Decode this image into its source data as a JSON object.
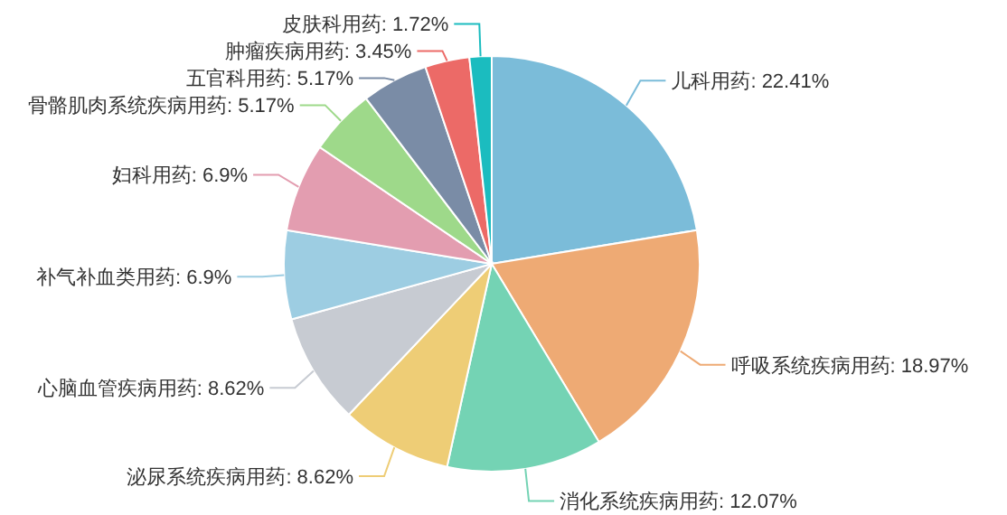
{
  "chart_data": {
    "type": "pie",
    "categories": [
      "儿科用药",
      "呼吸系统疾病用药",
      "消化系统疾病用药",
      "泌尿系统疾病用药",
      "心脑血管疾病用药",
      "补气补血类用药",
      "妇科用药",
      "骨骼肌肉系统疾病用药",
      "五官科用药",
      "肿瘤疾病用药",
      "皮肤科用药"
    ],
    "values": [
      22.41,
      18.97,
      12.07,
      8.62,
      8.62,
      6.9,
      6.9,
      5.17,
      5.17,
      3.45,
      1.72
    ],
    "value_labels": [
      "22.41%",
      "18.97%",
      "12.07%",
      "8.62%",
      "8.62%",
      "6.9%",
      "6.9%",
      "5.17%",
      "5.17%",
      "3.45%",
      "1.72%"
    ],
    "colors": [
      "#7bbcd9",
      "#eeaa74",
      "#74d3b4",
      "#eecd76",
      "#c7cbd2",
      "#9dcde2",
      "#e39db0",
      "#9ed98a",
      "#7a8ca6",
      "#ec6a67",
      "#1bbcbf"
    ]
  }
}
